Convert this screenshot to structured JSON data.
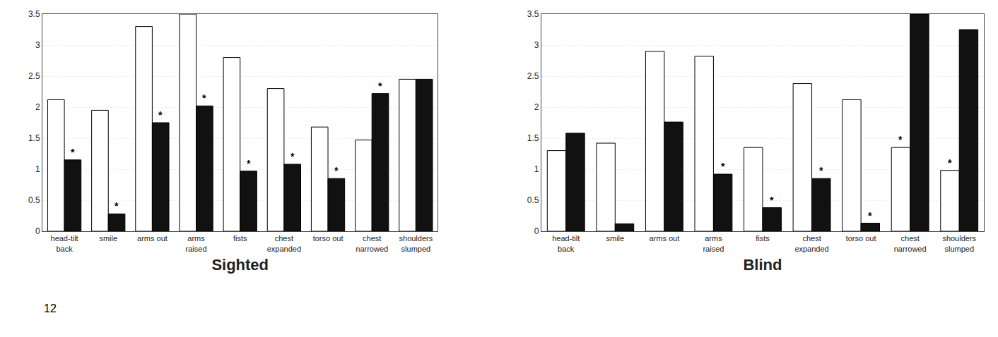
{
  "chart_data": [
    {
      "type": "bar",
      "title": "Sighted",
      "categories": [
        "head-tilt\nback",
        "smile",
        "arms out",
        "arms\nraised",
        "fists",
        "chest\nexpanded",
        "torso out",
        "chest\nnarrowed",
        "shoulders\nslumped"
      ],
      "series": [
        {
          "color": "#ffffff",
          "values": [
            2.12,
            1.95,
            3.3,
            3.5,
            2.8,
            2.3,
            1.68,
            1.47,
            2.45
          ]
        },
        {
          "color": "#111111",
          "values": [
            1.15,
            0.28,
            1.75,
            2.02,
            0.97,
            1.08,
            0.85,
            2.22,
            2.45
          ]
        }
      ],
      "ylim": [
        0,
        3.5
      ],
      "yticks": [
        0,
        0.5,
        1,
        1.5,
        2,
        2.5,
        3,
        3.5
      ],
      "grid": true,
      "annotations": [
        {
          "text": "*",
          "category": "head-tilt\nback",
          "series": 1
        },
        {
          "text": "*",
          "category": "smile",
          "series": 1
        },
        {
          "text": "*",
          "category": "arms out",
          "series": 1
        },
        {
          "text": "*",
          "category": "arms\nraised",
          "series": 1
        },
        {
          "text": "*",
          "category": "fists",
          "series": 1
        },
        {
          "text": "*",
          "category": "chest\nexpanded",
          "series": 1
        },
        {
          "text": "*",
          "category": "torso out",
          "series": 1
        },
        {
          "text": "*",
          "category": "chest\nnarrowed",
          "series": 1
        },
        {
          "text": "12"
        }
      ]
    },
    {
      "type": "bar",
      "title": "Blind",
      "categories": [
        "head-tilt\nback",
        "smile",
        "arms out",
        "arms\nraised",
        "fists",
        "chest\nexpanded",
        "torso out",
        "chest\nnarrowed",
        "shoulders\nslumped"
      ],
      "series": [
        {
          "color": "#ffffff",
          "values": [
            1.3,
            1.42,
            2.9,
            2.82,
            1.35,
            2.38,
            2.12,
            1.35,
            0.98
          ]
        },
        {
          "color": "#111111",
          "values": [
            1.58,
            0.12,
            1.76,
            0.92,
            0.38,
            0.85,
            0.13,
            3.5,
            3.25
          ]
        }
      ],
      "ylim": [
        0,
        3.5
      ],
      "yticks": [
        0,
        0.5,
        1,
        1.5,
        2,
        2.5,
        3,
        3.5
      ],
      "grid": true,
      "annotations": [
        {
          "text": "*",
          "category": "arms\nraised",
          "series": 1
        },
        {
          "text": "*",
          "category": "fists",
          "series": 1
        },
        {
          "text": "*",
          "category": "chest\nexpanded",
          "series": 1
        },
        {
          "text": "*",
          "category": "torso out",
          "series": 1
        },
        {
          "text": "*",
          "category": "chest\nnarrowed",
          "series": 0
        },
        {
          "text": "*",
          "category": "shoulders\nslumped",
          "series": 0
        }
      ]
    }
  ]
}
